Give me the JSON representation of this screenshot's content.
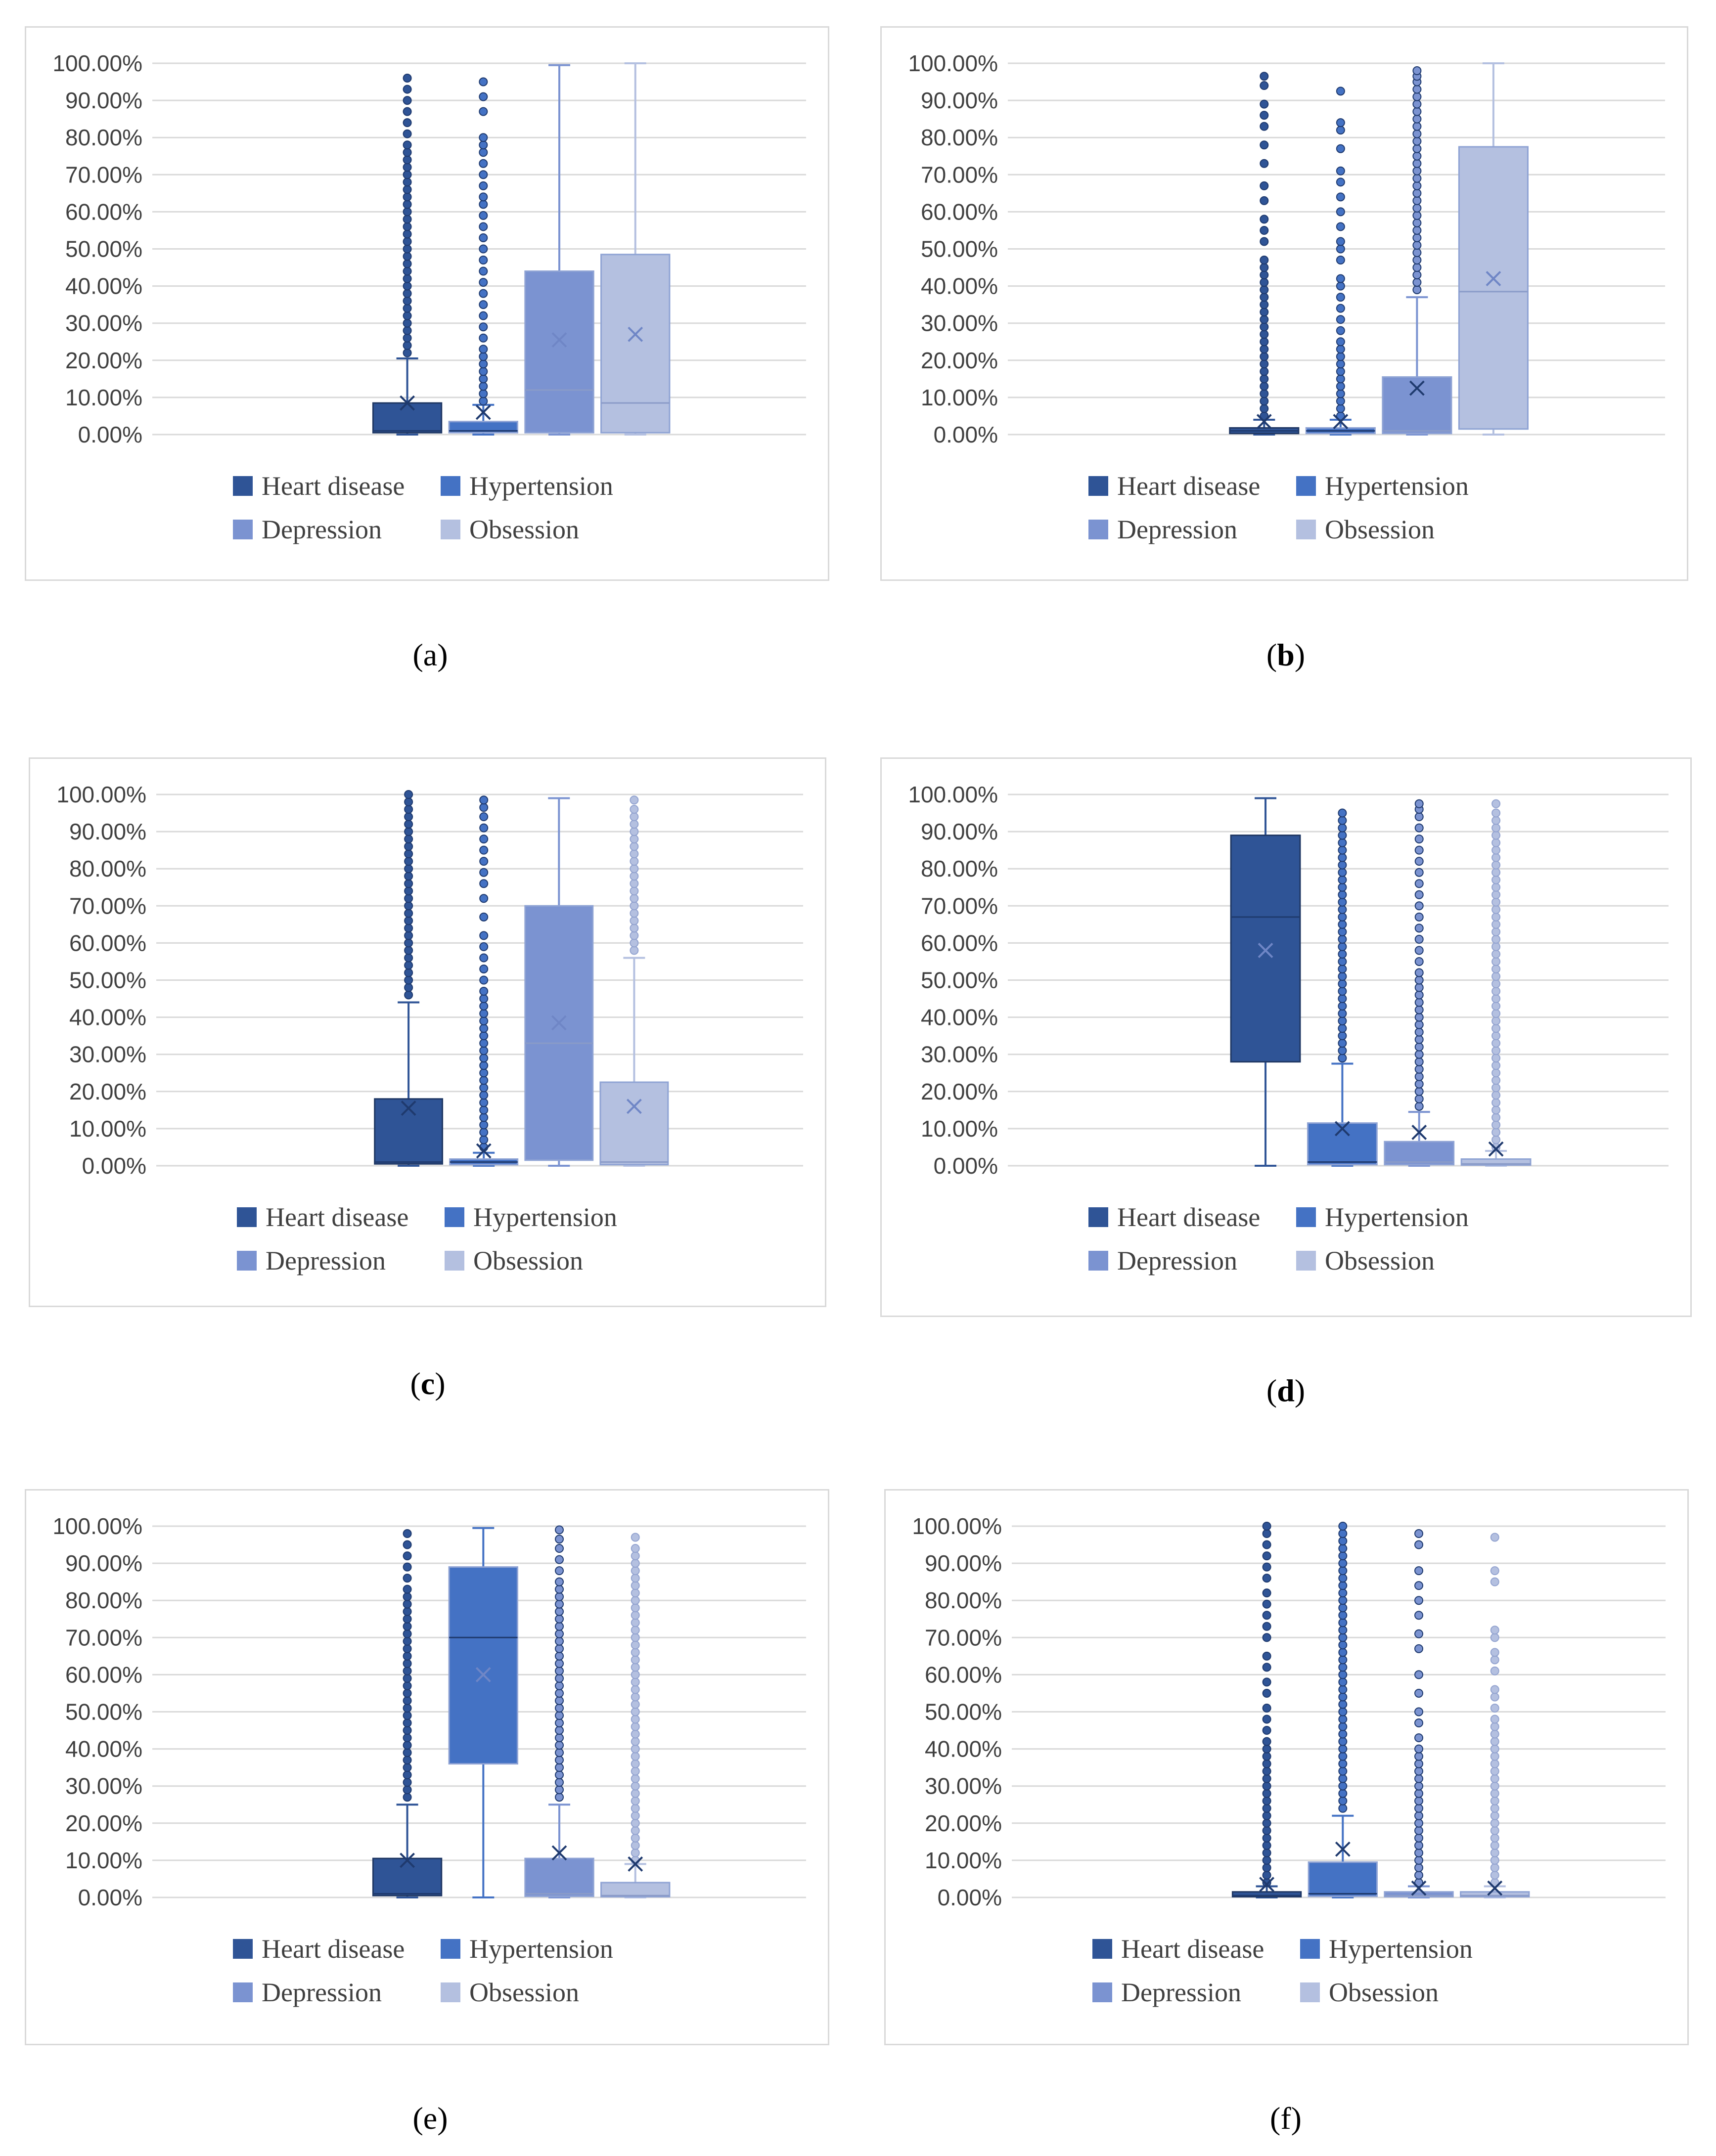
{
  "legend_colors": [
    "#2f5496",
    "#4472c4",
    "#7b93d1",
    "#b4c0e0"
  ],
  "y_ticks": [
    "0.00%",
    "10.00%",
    "20.00%",
    "30.00%",
    "40.00%",
    "50.00%",
    "60.00%",
    "70.00%",
    "80.00%",
    "90.00%",
    "100.00%"
  ],
  "chart_data": [
    {
      "type": "box",
      "panel": "a",
      "caption": "a",
      "series": [
        "Heart disease",
        "Hypertension",
        "Depression",
        "Obsession"
      ],
      "ylim": [
        0,
        100
      ],
      "yunit": "%",
      "boxes": [
        {
          "name": "Heart disease",
          "min": 0,
          "q1": 0.5,
          "median": 1,
          "q3": 8.5,
          "max": 20.5,
          "mean": 8.5,
          "outliers": [
            22,
            24,
            26,
            28,
            30,
            32,
            34,
            36,
            38,
            40,
            42,
            44,
            46,
            48,
            50,
            52,
            54,
            56,
            58,
            60,
            62,
            64,
            66,
            68,
            70,
            72,
            74,
            76,
            78,
            81,
            84,
            87,
            90,
            93,
            96
          ]
        },
        {
          "name": "Hypertension",
          "min": 0,
          "q1": 0.5,
          "median": 1,
          "q3": 3.5,
          "max": 8,
          "mean": 6,
          "outliers": [
            9,
            11,
            13,
            15,
            17,
            19,
            21,
            23,
            26,
            29,
            32,
            35,
            38,
            41,
            44,
            47,
            50,
            53,
            56,
            59,
            62,
            64,
            67,
            70,
            73,
            76,
            78,
            80,
            87,
            91,
            95
          ]
        },
        {
          "name": "Depression",
          "min": 0,
          "q1": 0.5,
          "median": 12,
          "q3": 44,
          "max": 99.5,
          "mean": 25.5,
          "outliers": []
        },
        {
          "name": "Obsession",
          "min": 0,
          "q1": 0.5,
          "median": 8.5,
          "q3": 48.5,
          "max": 100,
          "mean": 27,
          "outliers": []
        }
      ]
    },
    {
      "type": "box",
      "panel": "b",
      "caption": "b",
      "series": [
        "Heart disease",
        "Hypertension",
        "Depression",
        "Obsession"
      ],
      "ylim": [
        0,
        100
      ],
      "yunit": "%",
      "boxes": [
        {
          "name": "Heart disease",
          "min": 0,
          "q1": 0.3,
          "median": 1,
          "q3": 1.8,
          "max": 4,
          "mean": 3.5,
          "outliers": [
            5,
            7,
            9,
            11,
            13,
            15,
            17,
            19,
            21,
            23,
            25,
            27,
            29,
            31,
            33,
            35,
            37,
            39,
            41,
            43,
            45,
            47,
            52,
            55,
            58,
            63,
            67,
            73,
            78,
            83,
            86,
            89,
            94,
            96.5
          ]
        },
        {
          "name": "Hypertension",
          "min": 0,
          "q1": 0.3,
          "median": 1,
          "q3": 1.8,
          "max": 4,
          "mean": 3.5,
          "outliers": [
            5,
            7,
            9,
            11,
            13,
            15,
            17,
            19,
            21,
            23,
            25,
            28,
            31,
            34,
            37,
            40,
            42,
            47,
            50,
            52,
            56,
            60,
            64,
            68,
            71,
            77,
            82,
            84,
            92.5
          ]
        },
        {
          "name": "Depression",
          "min": 0,
          "q1": 0.3,
          "median": 1,
          "q3": 15.5,
          "max": 37,
          "mean": 12.5,
          "outliers": [
            39,
            41,
            43,
            45,
            47,
            49,
            51,
            53,
            55,
            57,
            59,
            61,
            63,
            65,
            67,
            69,
            71,
            73,
            75,
            77,
            79,
            81,
            83,
            85,
            87,
            89,
            91,
            93,
            95,
            96.5,
            98
          ]
        },
        {
          "name": "Obsession",
          "min": 0,
          "q1": 1.5,
          "median": 38.5,
          "q3": 77.5,
          "max": 100,
          "mean": 42,
          "outliers": []
        }
      ]
    },
    {
      "type": "box",
      "panel": "c",
      "caption": "c",
      "series": [
        "Heart disease",
        "Hypertension",
        "Depression",
        "Obsession"
      ],
      "ylim": [
        0,
        100
      ],
      "yunit": "%",
      "boxes": [
        {
          "name": "Heart disease",
          "min": 0,
          "q1": 0.5,
          "median": 1,
          "q3": 18,
          "max": 44,
          "mean": 15.5,
          "outliers": [
            46,
            48,
            50,
            52,
            54,
            56,
            58,
            60,
            62,
            64,
            66,
            68,
            70,
            72,
            74,
            76,
            78,
            80,
            82,
            84,
            86,
            88,
            90,
            92,
            94,
            96,
            98,
            100
          ]
        },
        {
          "name": "Hypertension",
          "min": 0,
          "q1": 0.3,
          "median": 1,
          "q3": 1.8,
          "max": 3.5,
          "mean": 4,
          "outliers": [
            5,
            7,
            9,
            11,
            13,
            15,
            17,
            19,
            21,
            23,
            25,
            27,
            29,
            31,
            33,
            35,
            37,
            39,
            41,
            43,
            45,
            47,
            50,
            53,
            56,
            59,
            62,
            67,
            72,
            76,
            79,
            82,
            85,
            88,
            91,
            94,
            96.5,
            98.5
          ]
        },
        {
          "name": "Depression",
          "min": 0,
          "q1": 1.5,
          "median": 33,
          "q3": 70,
          "max": 99,
          "mean": 38.5,
          "outliers": []
        },
        {
          "name": "Obsession",
          "min": 0,
          "q1": 0.3,
          "median": 1,
          "q3": 22.5,
          "max": 56,
          "mean": 16,
          "outliers": [
            58,
            60,
            62,
            64,
            66,
            68,
            70,
            72,
            74,
            76,
            78,
            80,
            82,
            84,
            86,
            88,
            90,
            92,
            94,
            96,
            98.5
          ]
        }
      ]
    },
    {
      "type": "box",
      "panel": "d",
      "caption": "d",
      "series": [
        "Heart disease",
        "Hypertension",
        "Depression",
        "Obsession"
      ],
      "ylim": [
        0,
        100
      ],
      "yunit": "%",
      "boxes": [
        {
          "name": "Heart disease",
          "min": 0,
          "q1": 28,
          "median": 67,
          "q3": 89,
          "max": 99,
          "mean": 58,
          "outliers": []
        },
        {
          "name": "Hypertension",
          "min": 0,
          "q1": 0.3,
          "median": 1,
          "q3": 11.5,
          "max": 27.5,
          "mean": 10,
          "outliers": [
            29,
            31,
            33,
            35,
            37,
            39,
            41,
            43,
            45,
            47,
            49,
            51,
            53,
            55,
            57,
            59,
            61,
            63,
            65,
            67,
            69,
            71,
            73,
            75,
            77,
            79,
            81,
            83,
            85,
            87,
            89,
            91,
            93,
            95
          ]
        },
        {
          "name": "Depression",
          "min": 0,
          "q1": 0.3,
          "median": 1,
          "q3": 6.5,
          "max": 14.5,
          "mean": 9,
          "outliers": [
            16,
            18,
            20,
            22,
            24,
            26,
            28,
            30,
            32,
            34,
            36,
            38,
            40,
            42,
            44,
            46,
            48,
            50,
            52,
            55,
            58,
            61,
            64,
            67,
            70,
            73,
            76,
            79,
            82,
            85,
            88,
            91,
            94,
            96,
            97.5
          ]
        },
        {
          "name": "Obsession",
          "min": 0,
          "q1": 0.2,
          "median": 0.5,
          "q3": 1.8,
          "max": 4,
          "mean": 4.5,
          "outliers": [
            5,
            7,
            9,
            11,
            13,
            15,
            17,
            19,
            21,
            23,
            25,
            27,
            29,
            31,
            33,
            35,
            37,
            39,
            41,
            43,
            45,
            47,
            49,
            51,
            53,
            55,
            57,
            59,
            61,
            63,
            65,
            67,
            69,
            71,
            73,
            75,
            77,
            79,
            81,
            83,
            85,
            87,
            89,
            91,
            93,
            95,
            97.5
          ]
        }
      ]
    },
    {
      "type": "box",
      "panel": "e",
      "caption": "e",
      "series": [
        "Heart disease",
        "Hypertension",
        "Depression",
        "Obsession"
      ],
      "ylim": [
        0,
        100
      ],
      "yunit": "%",
      "boxes": [
        {
          "name": "Heart disease",
          "min": 0,
          "q1": 0.5,
          "median": 1,
          "q3": 10.5,
          "max": 25,
          "mean": 10,
          "outliers": [
            27,
            29,
            31,
            33,
            35,
            37,
            39,
            41,
            43,
            45,
            47,
            49,
            51,
            53,
            55,
            57,
            59,
            61,
            63,
            65,
            67,
            69,
            71,
            73,
            75,
            77,
            79,
            81,
            83,
            86,
            89,
            92,
            95,
            98
          ]
        },
        {
          "name": "Hypertension",
          "min": 0,
          "q1": 36,
          "median": 70,
          "q3": 89,
          "max": 99.5,
          "mean": 60,
          "outliers": []
        },
        {
          "name": "Depression",
          "min": 0,
          "q1": 0.3,
          "median": 1,
          "q3": 10.5,
          "max": 25,
          "mean": 12,
          "outliers": [
            27,
            29,
            31,
            33,
            35,
            37,
            39,
            41,
            43,
            45,
            47,
            49,
            51,
            53,
            55,
            57,
            59,
            61,
            63,
            65,
            67,
            69,
            71,
            73,
            75,
            77,
            79,
            81,
            83,
            85,
            88,
            91,
            94,
            96.5,
            99
          ]
        },
        {
          "name": "Obsession",
          "min": 0,
          "q1": 0.2,
          "median": 0.5,
          "q3": 4,
          "max": 9,
          "mean": 9,
          "outliers": [
            10,
            12,
            14,
            16,
            18,
            20,
            22,
            24,
            26,
            28,
            30,
            32,
            34,
            36,
            38,
            40,
            42,
            44,
            46,
            48,
            50,
            52,
            54,
            56,
            58,
            60,
            62,
            64,
            66,
            68,
            70,
            72,
            74,
            76,
            78,
            80,
            82,
            84,
            86,
            88,
            90,
            92,
            94,
            97
          ]
        }
      ]
    },
    {
      "type": "box",
      "panel": "f",
      "caption": "f",
      "series": [
        "Heart disease",
        "Hypertension",
        "Depression",
        "Obsession"
      ],
      "ylim": [
        0,
        100
      ],
      "yunit": "%",
      "boxes": [
        {
          "name": "Heart disease",
          "min": 0,
          "q1": 0.2,
          "median": 0.5,
          "q3": 1.5,
          "max": 3,
          "mean": 3.5,
          "outliers": [
            4,
            6,
            8,
            10,
            12,
            14,
            16,
            18,
            20,
            22,
            24,
            26,
            28,
            30,
            32,
            34,
            36,
            38,
            40,
            42,
            45,
            48,
            51,
            55,
            58,
            62,
            65,
            70,
            73,
            76,
            79,
            82,
            86,
            89,
            92,
            95,
            98,
            100
          ]
        },
        {
          "name": "Hypertension",
          "min": 0,
          "q1": 0.3,
          "median": 1,
          "q3": 9.5,
          "max": 22,
          "mean": 13,
          "outliers": [
            24,
            26,
            28,
            30,
            32,
            34,
            36,
            38,
            40,
            42,
            44,
            46,
            48,
            50,
            52,
            54,
            56,
            58,
            60,
            62,
            64,
            66,
            68,
            70,
            72,
            74,
            76,
            78,
            80,
            82,
            84,
            86,
            88,
            90,
            92,
            94,
            96,
            98,
            100
          ]
        },
        {
          "name": "Depression",
          "min": 0,
          "q1": 0.2,
          "median": 0.5,
          "q3": 1.5,
          "max": 3,
          "mean": 2.5,
          "outliers": [
            4,
            6,
            8,
            10,
            12,
            14,
            16,
            18,
            20,
            22,
            24,
            26,
            28,
            30,
            32,
            34,
            36,
            38,
            40,
            43,
            47,
            50,
            55,
            60,
            67,
            71,
            76,
            80,
            84,
            88,
            95,
            98
          ]
        },
        {
          "name": "Obsession",
          "min": 0,
          "q1": 0.2,
          "median": 0.5,
          "q3": 1.5,
          "max": 3,
          "mean": 2.5,
          "outliers": [
            4,
            6,
            8,
            10,
            12,
            14,
            16,
            18,
            20,
            22,
            24,
            26,
            28,
            30,
            32,
            34,
            36,
            38,
            40,
            42,
            44,
            46,
            48,
            51,
            54,
            56,
            61,
            64,
            66,
            70,
            72,
            85,
            88,
            97
          ]
        }
      ]
    }
  ]
}
